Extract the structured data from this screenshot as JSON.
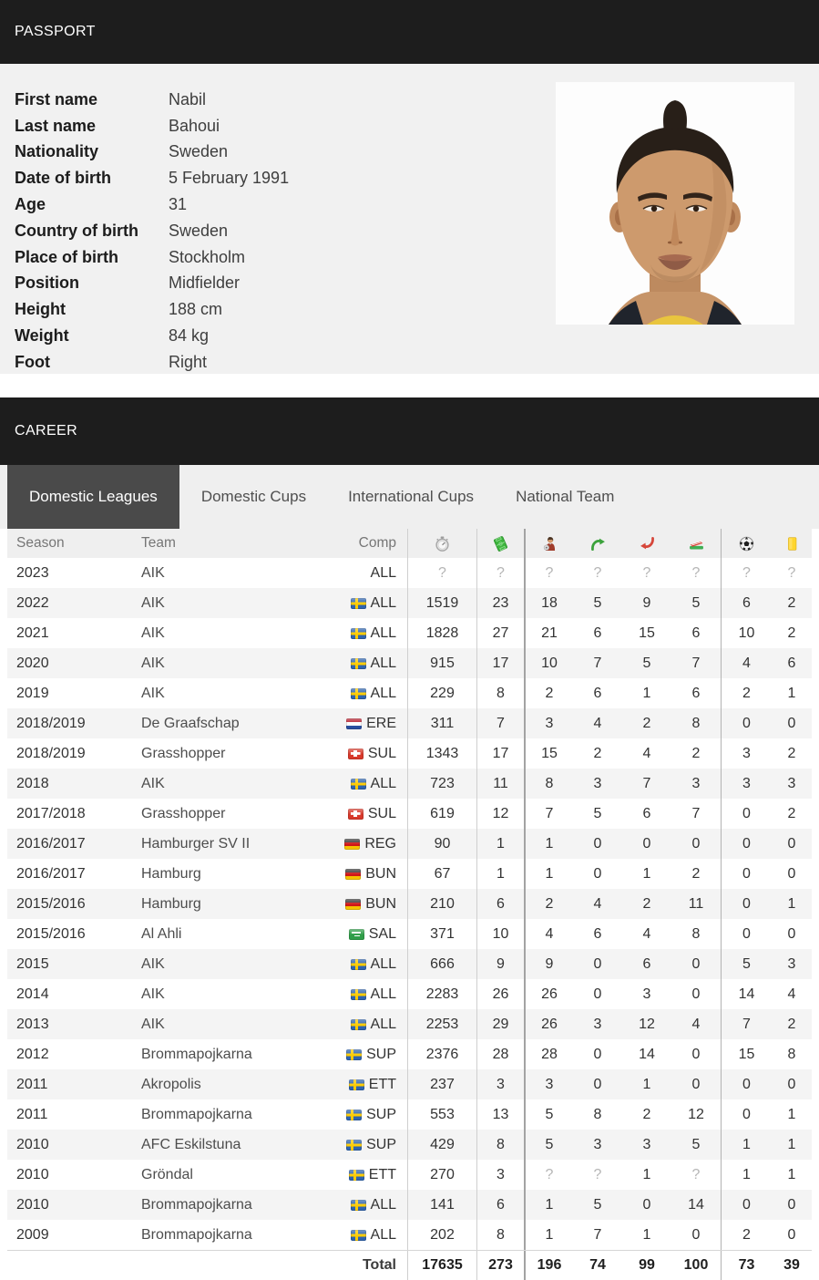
{
  "colors": {
    "header_bar_bg": "#1d1d1d",
    "active_tab_bg": "#4a4a4a",
    "section_bg": "#f1f1f1",
    "row_stripe": "#f4f4f4",
    "yellow_card": "#ffd52e"
  },
  "passport": {
    "title": "PASSPORT",
    "fields": [
      {
        "label": "First name",
        "value": "Nabil"
      },
      {
        "label": "Last name",
        "value": "Bahoui"
      },
      {
        "label": "Nationality",
        "value": "Sweden"
      },
      {
        "label": "Date of birth",
        "value": "5 February 1991"
      },
      {
        "label": "Age",
        "value": "31"
      },
      {
        "label": "Country of birth",
        "value": "Sweden"
      },
      {
        "label": "Place of birth",
        "value": "Stockholm"
      },
      {
        "label": "Position",
        "value": "Midfielder"
      },
      {
        "label": "Height",
        "value": "188 cm"
      },
      {
        "label": "Weight",
        "value": "84 kg"
      },
      {
        "label": "Foot",
        "value": "Right"
      }
    ]
  },
  "career": {
    "title": "CAREER",
    "tabs": [
      {
        "label": "Domestic Leagues",
        "active": true
      },
      {
        "label": "Domestic Cups",
        "active": false
      },
      {
        "label": "International Cups",
        "active": false
      },
      {
        "label": "National Team",
        "active": false
      }
    ],
    "table": {
      "text_headers": [
        "Season",
        "Team",
        "Comp"
      ],
      "icon_headers": [
        "minutes-icon",
        "matches-icon",
        "lineups-icon",
        "sub-in-icon",
        "sub-out-icon",
        "bench-icon",
        "goals-icon",
        "yellow-cards-icon"
      ],
      "rows": [
        {
          "season": "2023",
          "team": "AIK",
          "flag": null,
          "comp": "ALL",
          "values": [
            "?",
            "?",
            "?",
            "?",
            "?",
            "?",
            "?",
            "?"
          ]
        },
        {
          "season": "2022",
          "team": "AIK",
          "flag": "sweden",
          "comp": "ALL",
          "values": [
            "1519",
            "23",
            "18",
            "5",
            "9",
            "5",
            "6",
            "2"
          ]
        },
        {
          "season": "2021",
          "team": "AIK",
          "flag": "sweden",
          "comp": "ALL",
          "values": [
            "1828",
            "27",
            "21",
            "6",
            "15",
            "6",
            "10",
            "2"
          ]
        },
        {
          "season": "2020",
          "team": "AIK",
          "flag": "sweden",
          "comp": "ALL",
          "values": [
            "915",
            "17",
            "10",
            "7",
            "5",
            "7",
            "4",
            "6"
          ]
        },
        {
          "season": "2019",
          "team": "AIK",
          "flag": "sweden",
          "comp": "ALL",
          "values": [
            "229",
            "8",
            "2",
            "6",
            "1",
            "6",
            "2",
            "1"
          ]
        },
        {
          "season": "2018/2019",
          "team": "De Graafschap",
          "flag": "netherlands",
          "comp": "ERE",
          "values": [
            "311",
            "7",
            "3",
            "4",
            "2",
            "8",
            "0",
            "0"
          ]
        },
        {
          "season": "2018/2019",
          "team": "Grasshopper",
          "flag": "switzerland",
          "comp": "SUL",
          "values": [
            "1343",
            "17",
            "15",
            "2",
            "4",
            "2",
            "3",
            "2"
          ]
        },
        {
          "season": "2018",
          "team": "AIK",
          "flag": "sweden",
          "comp": "ALL",
          "values": [
            "723",
            "11",
            "8",
            "3",
            "7",
            "3",
            "3",
            "3"
          ]
        },
        {
          "season": "2017/2018",
          "team": "Grasshopper",
          "flag": "switzerland",
          "comp": "SUL",
          "values": [
            "619",
            "12",
            "7",
            "5",
            "6",
            "7",
            "0",
            "2"
          ]
        },
        {
          "season": "2016/2017",
          "team": "Hamburger SV II",
          "flag": "germany",
          "comp": "REG",
          "values": [
            "90",
            "1",
            "1",
            "0",
            "0",
            "0",
            "0",
            "0"
          ]
        },
        {
          "season": "2016/2017",
          "team": "Hamburg",
          "flag": "germany",
          "comp": "BUN",
          "values": [
            "67",
            "1",
            "1",
            "0",
            "1",
            "2",
            "0",
            "0"
          ]
        },
        {
          "season": "2015/2016",
          "team": "Hamburg",
          "flag": "germany",
          "comp": "BUN",
          "values": [
            "210",
            "6",
            "2",
            "4",
            "2",
            "11",
            "0",
            "1"
          ]
        },
        {
          "season": "2015/2016",
          "team": "Al Ahli",
          "flag": "saudi-arabia",
          "comp": "SAL",
          "values": [
            "371",
            "10",
            "4",
            "6",
            "4",
            "8",
            "0",
            "0"
          ]
        },
        {
          "season": "2015",
          "team": "AIK",
          "flag": "sweden",
          "comp": "ALL",
          "values": [
            "666",
            "9",
            "9",
            "0",
            "6",
            "0",
            "5",
            "3"
          ]
        },
        {
          "season": "2014",
          "team": "AIK",
          "flag": "sweden",
          "comp": "ALL",
          "values": [
            "2283",
            "26",
            "26",
            "0",
            "3",
            "0",
            "14",
            "4"
          ]
        },
        {
          "season": "2013",
          "team": "AIK",
          "flag": "sweden",
          "comp": "ALL",
          "values": [
            "2253",
            "29",
            "26",
            "3",
            "12",
            "4",
            "7",
            "2"
          ]
        },
        {
          "season": "2012",
          "team": "Brommapojkarna",
          "flag": "sweden",
          "comp": "SUP",
          "values": [
            "2376",
            "28",
            "28",
            "0",
            "14",
            "0",
            "15",
            "8"
          ]
        },
        {
          "season": "2011",
          "team": "Akropolis",
          "flag": "sweden",
          "comp": "ETT",
          "values": [
            "237",
            "3",
            "3",
            "0",
            "1",
            "0",
            "0",
            "0"
          ]
        },
        {
          "season": "2011",
          "team": "Brommapojkarna",
          "flag": "sweden",
          "comp": "SUP",
          "values": [
            "553",
            "13",
            "5",
            "8",
            "2",
            "12",
            "0",
            "1"
          ]
        },
        {
          "season": "2010",
          "team": "AFC Eskilstuna",
          "flag": "sweden",
          "comp": "SUP",
          "values": [
            "429",
            "8",
            "5",
            "3",
            "3",
            "5",
            "1",
            "1"
          ]
        },
        {
          "season": "2010",
          "team": "Gröndal",
          "flag": "sweden",
          "comp": "ETT",
          "values": [
            "270",
            "3",
            "?",
            "?",
            "1",
            "?",
            "1",
            "1"
          ]
        },
        {
          "season": "2010",
          "team": "Brommapojkarna",
          "flag": "sweden",
          "comp": "ALL",
          "values": [
            "141",
            "6",
            "1",
            "5",
            "0",
            "14",
            "0",
            "0"
          ]
        },
        {
          "season": "2009",
          "team": "Brommapojkarna",
          "flag": "sweden",
          "comp": "ALL",
          "values": [
            "202",
            "8",
            "1",
            "7",
            "1",
            "0",
            "2",
            "0"
          ]
        }
      ],
      "total": {
        "label": "Total",
        "values": [
          "17635",
          "273",
          "196",
          "74",
          "99",
          "100",
          "73",
          "39"
        ]
      }
    }
  }
}
